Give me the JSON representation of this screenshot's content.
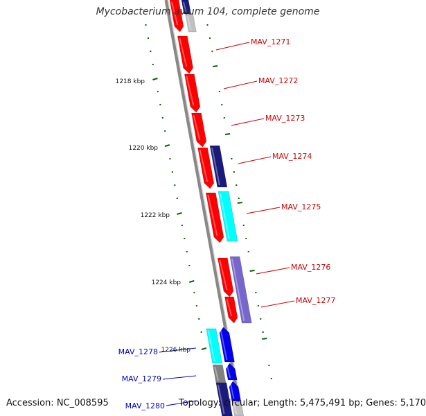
{
  "title": "Mycobacterium avium 104, complete genome",
  "accession": "Accession: NC_008595",
  "summary": "Topology: circular; Length: 5,475,491 bp; Genes: 5,170",
  "colors": {
    "red": "#ff0000",
    "navy": "#1a1a7a",
    "blue": "#0000ee",
    "cyan": "#00ffff",
    "purple": "#7766cc",
    "gray": "#808080",
    "lightgray": "#c0c0c0",
    "tick": "#006400",
    "label_red": "#cc0000",
    "label_blue": "#0000bb"
  },
  "scale": [
    "1218 kbp",
    "1220 kbp",
    "1222 kbp",
    "1224 kbp",
    "1226 kbp"
  ],
  "gene_labels": [
    {
      "text": "MAV_1271",
      "color": "label_red"
    },
    {
      "text": "MAV_1272",
      "color": "label_red"
    },
    {
      "text": "MAV_1273",
      "color": "label_red"
    },
    {
      "text": "MAV_1274",
      "color": "label_red"
    },
    {
      "text": "MAV_1275",
      "color": "label_red"
    },
    {
      "text": "MAV_1276",
      "color": "label_red"
    },
    {
      "text": "MAV_1277",
      "color": "label_red"
    },
    {
      "text": "MAV_1278",
      "color": "label_blue"
    },
    {
      "text": "MAV_1279",
      "color": "label_blue"
    },
    {
      "text": "MAV_1280",
      "color": "label_blue"
    }
  ]
}
